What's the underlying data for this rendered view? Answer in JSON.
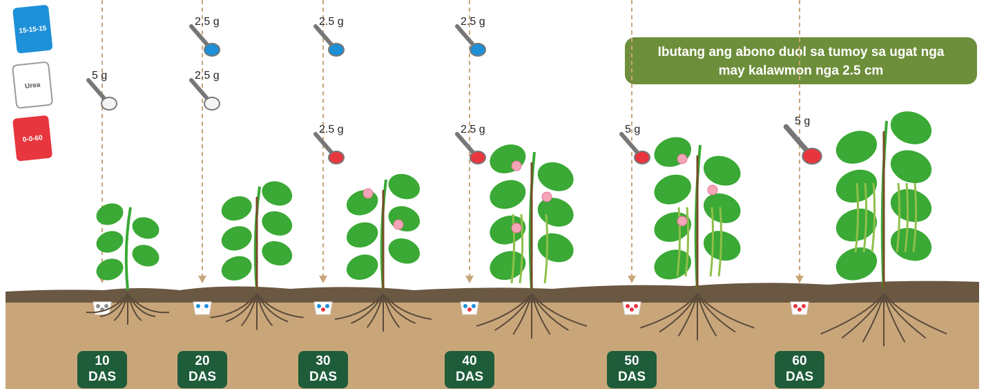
{
  "fertilizers": [
    {
      "label": "15-15-15"
    },
    {
      "label": "Urea"
    },
    {
      "label": "0-0-60"
    }
  ],
  "note": {
    "lines": [
      "Ibutang ang abono duol sa tumoy sa ugat nga",
      "may kalawmon nga 2.5 cm"
    ]
  },
  "stages": [
    {
      "day": "10",
      "unit": "DAS",
      "applications": [
        {
          "amount": "5 g"
        }
      ]
    },
    {
      "day": "20",
      "unit": "DAS",
      "applications": [
        {
          "amount": "2.5 g"
        },
        {
          "amount": "2.5 g"
        }
      ]
    },
    {
      "day": "30",
      "unit": "DAS",
      "applications": [
        {
          "amount": "2.5 g"
        },
        {
          "amount": "2.5 g"
        }
      ]
    },
    {
      "day": "40",
      "unit": "DAS",
      "applications": [
        {
          "amount": "2.5 g"
        },
        {
          "amount": "2.5 g"
        }
      ]
    },
    {
      "day": "50",
      "unit": "DAS",
      "applications": [
        {
          "amount": "5 g"
        }
      ]
    },
    {
      "day": "60",
      "unit": "DAS",
      "applications": [
        {
          "amount": "5 g"
        }
      ]
    }
  ]
}
